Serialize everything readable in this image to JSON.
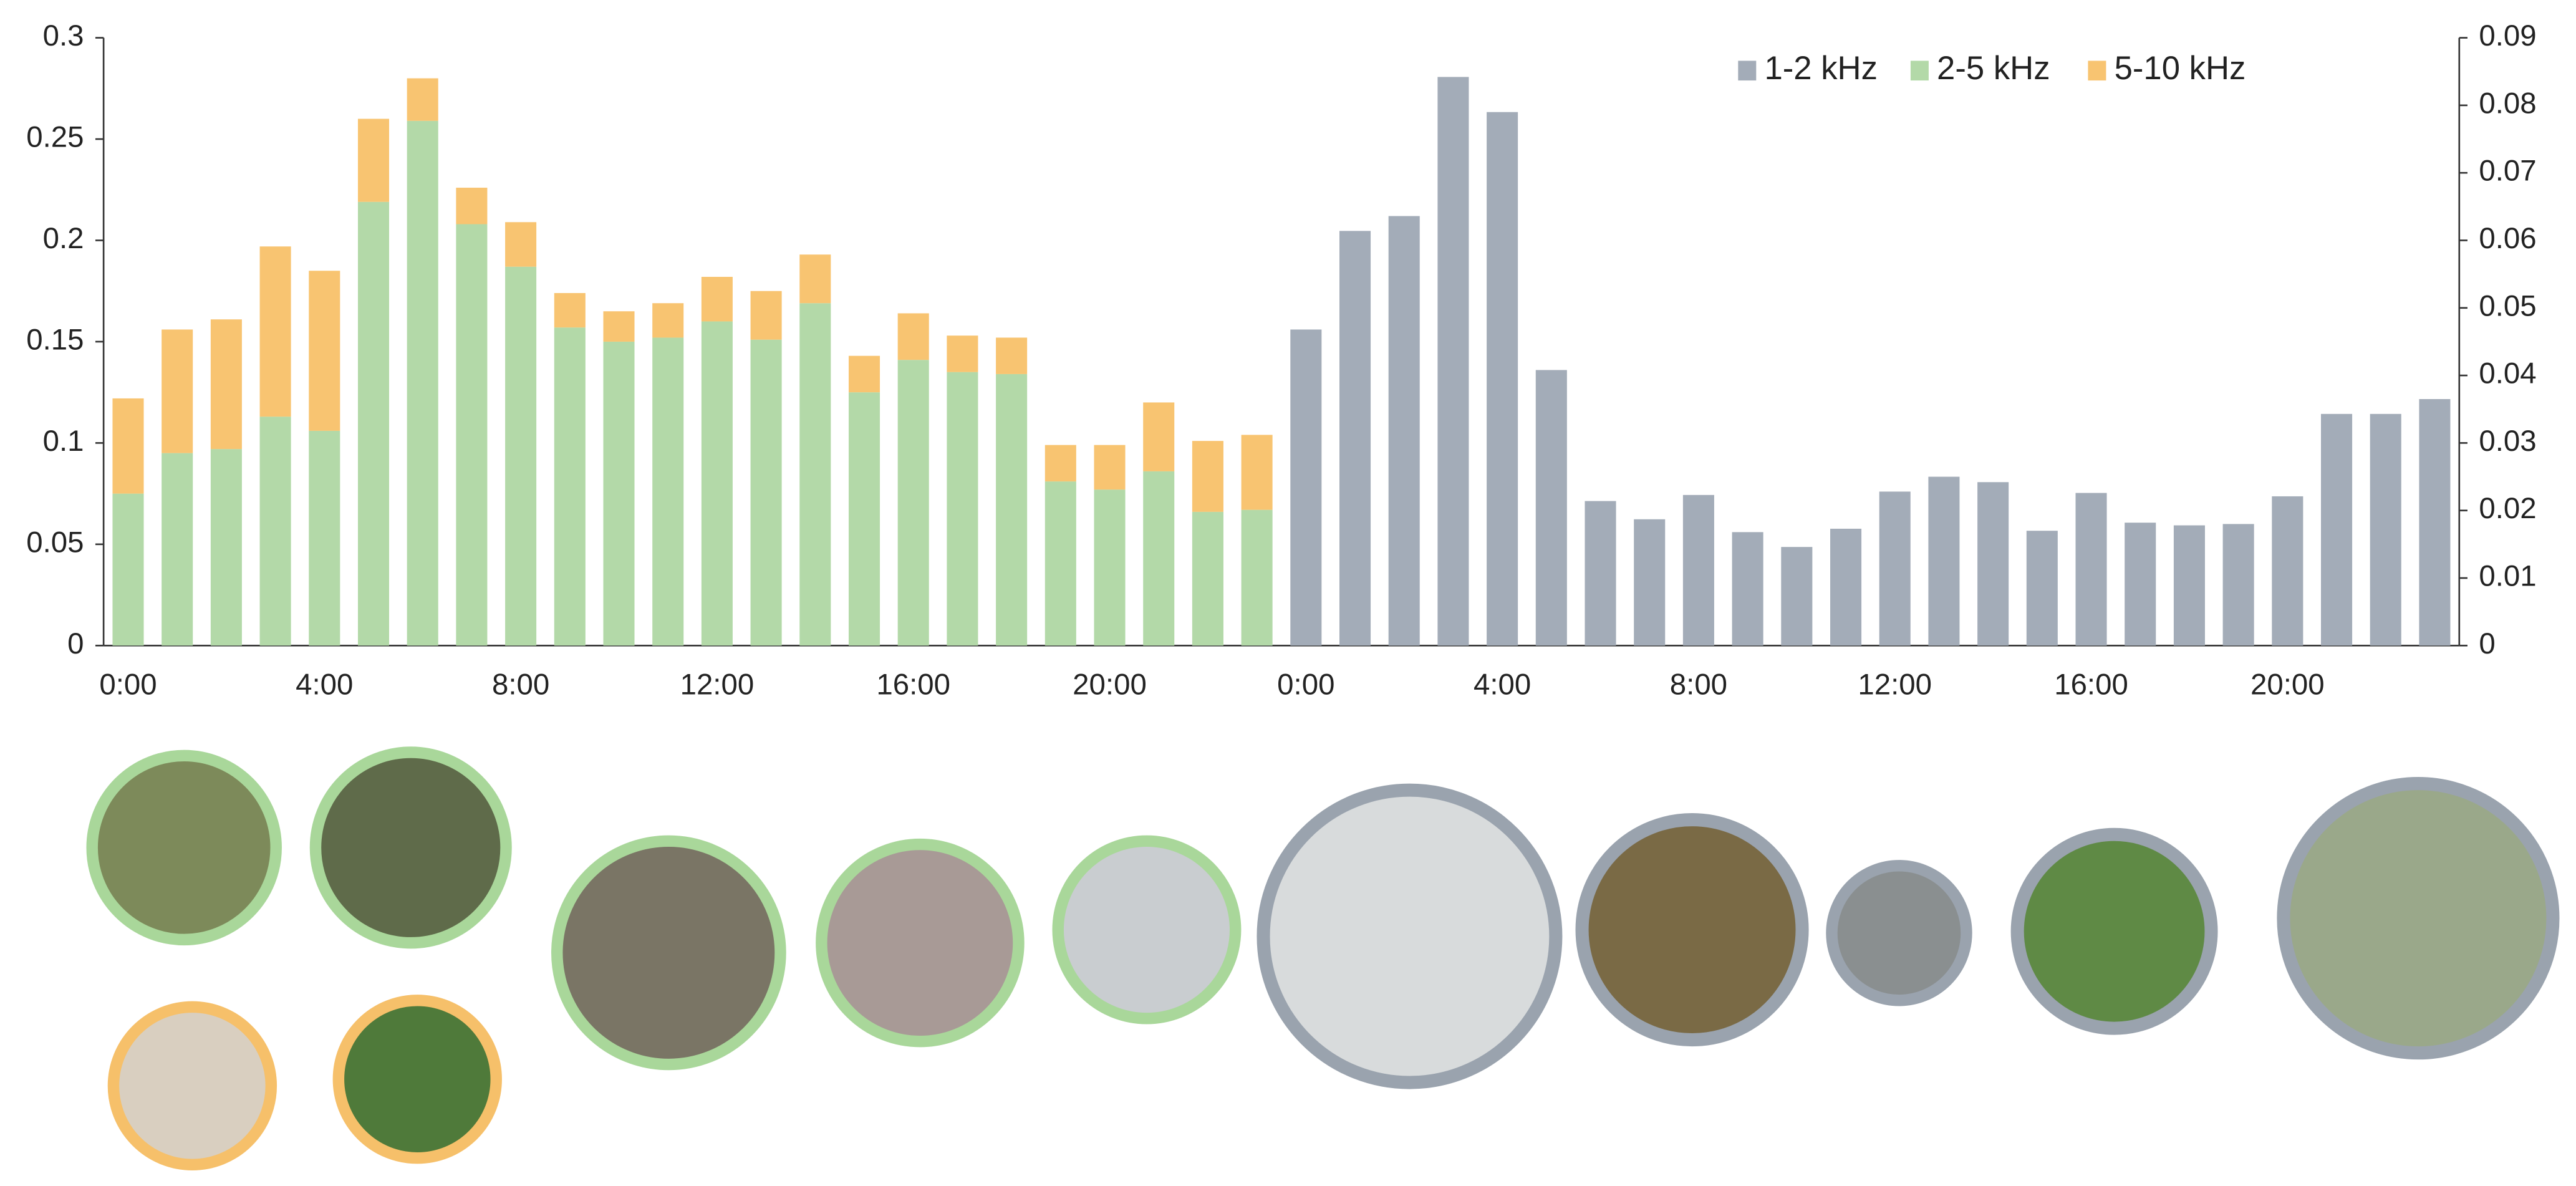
{
  "chart_data": {
    "type": "bar",
    "stacked": true,
    "legend": "top-right",
    "categories": [
      "0:00",
      null,
      null,
      null,
      "4:00",
      null,
      null,
      null,
      "8:00",
      null,
      null,
      null,
      "12:00",
      null,
      null,
      null,
      "16:00",
      null,
      null,
      null,
      "20:00",
      null,
      null,
      null,
      "0:00",
      null,
      null,
      null,
      "4:00",
      null,
      null,
      null,
      "8:00",
      null,
      null,
      null,
      "12:00",
      null,
      null,
      null,
      "16:00",
      null,
      null,
      null,
      "20:00",
      null,
      null,
      null
    ],
    "series": [
      {
        "name": "1-2 kHz",
        "color": "#a3acb8",
        "axis": "y2",
        "values": [
          null,
          null,
          null,
          null,
          null,
          null,
          null,
          null,
          null,
          null,
          null,
          null,
          null,
          null,
          null,
          null,
          null,
          null,
          null,
          null,
          null,
          null,
          null,
          null,
          0.0468,
          0.0614,
          0.0636,
          0.0842,
          0.079,
          0.0408,
          0.0214,
          0.0187,
          0.0223,
          0.0168,
          0.0146,
          0.0173,
          0.0228,
          0.025,
          0.0242,
          0.017,
          0.0226,
          0.0182,
          0.0178,
          0.018,
          0.0221,
          0.0343,
          0.0343,
          0.0365
        ]
      },
      {
        "name": "2-5 kHz",
        "color": "#b3d9a8",
        "values": [
          0.075,
          0.095,
          0.097,
          0.113,
          0.106,
          0.219,
          0.259,
          0.208,
          0.187,
          0.157,
          0.15,
          0.152,
          0.16,
          0.151,
          0.169,
          0.125,
          0.141,
          0.135,
          0.134,
          0.081,
          0.077,
          0.086,
          0.066,
          0.067,
          null,
          null,
          null,
          null,
          null,
          null,
          null,
          null,
          null,
          null,
          null,
          null,
          null,
          null,
          null,
          null,
          null,
          null,
          null,
          null,
          null,
          null,
          null,
          null
        ]
      },
      {
        "name": "5-10 kHz",
        "color": "#f8c471",
        "values": [
          0.047,
          0.061,
          0.064,
          0.084,
          0.079,
          0.041,
          0.021,
          0.018,
          0.022,
          0.017,
          0.015,
          0.017,
          0.022,
          0.024,
          0.024,
          0.018,
          0.023,
          0.018,
          0.018,
          0.018,
          0.022,
          0.034,
          0.035,
          0.037,
          null,
          null,
          null,
          null,
          null,
          null,
          null,
          null,
          null,
          null,
          null,
          null,
          null,
          null,
          null,
          null,
          null,
          null,
          null,
          null,
          null,
          null,
          null,
          null
        ]
      }
    ],
    "ylim": [
      0,
      0.3
    ],
    "yticks": [
      0,
      0.05,
      0.1,
      0.15,
      0.2,
      0.25,
      0.3
    ],
    "y2lim": [
      0,
      0.09
    ],
    "y2ticks": [
      0,
      0.01,
      0.02,
      0.03,
      0.04,
      0.05,
      0.06,
      0.07,
      0.08,
      0.09
    ]
  }
}
